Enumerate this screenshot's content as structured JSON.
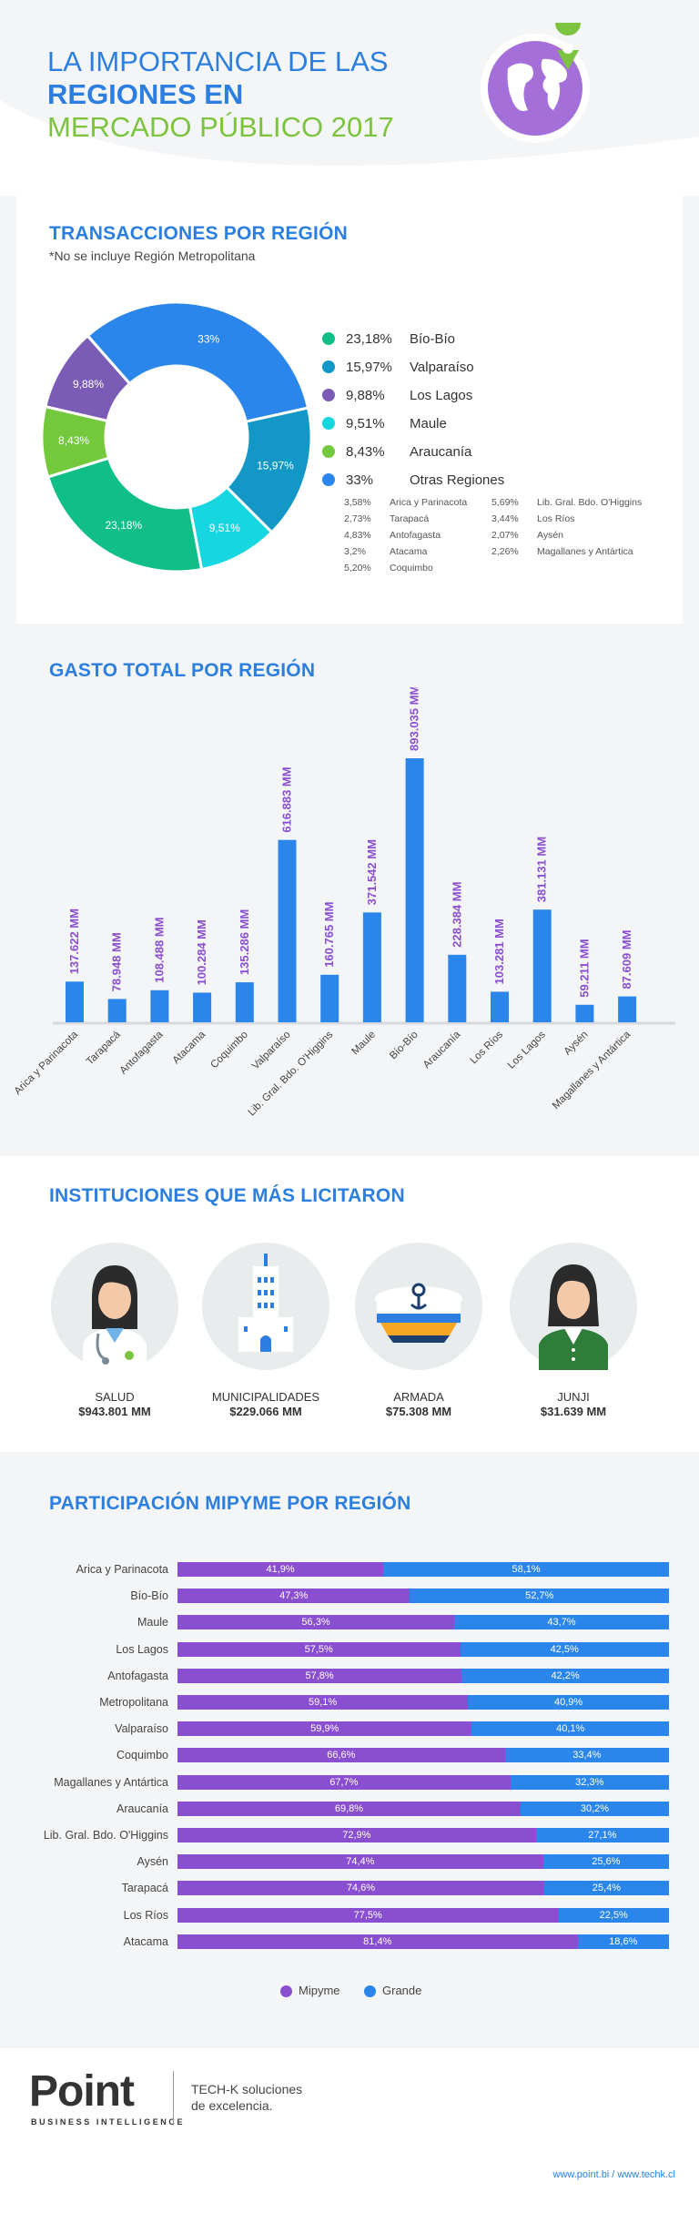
{
  "header": {
    "line1": "LA IMPORTANCIA DE LAS",
    "line2": "REGIONES EN",
    "line3": "MERCADO PÚBLICO 2017"
  },
  "transacciones": {
    "title": "TRANSACCIONES POR REGIÓN",
    "note": "*No se incluye Región Metropolitana"
  },
  "gasto": {
    "title": "GASTO TOTAL POR REGIÓN"
  },
  "instituciones": {
    "title": "INSTITUCIONES QUE MÁS LICITARON",
    "items": [
      {
        "name": "SALUD",
        "value": "$943.801 MM"
      },
      {
        "name": "MUNICIPALIDADES",
        "value": "$229.066 MM"
      },
      {
        "name": "ARMADA",
        "value": "$75.308 MM"
      },
      {
        "name": "JUNJI",
        "value": "$31.639 MM"
      }
    ]
  },
  "mipyme": {
    "title": "PARTICIPACIÓN MIPYME POR REGIÓN"
  },
  "footer": {
    "logo": "Point",
    "logo_sub": "BUSINESS INTELLIGENCE",
    "tagline1": "TECH-K soluciones",
    "tagline2": "de excelencia.",
    "urls": "www.point.bi / www.techk.cl"
  },
  "colors": {
    "blue": "#2c7fe0",
    "green_title": "#7cc43f",
    "biobio": "#0fbf87",
    "valparaiso": "#1297c7",
    "loslagos": "#7a5bb5",
    "maule": "#16d6e0",
    "araucania": "#74c83c",
    "otras": "#2a86ea",
    "mipyme": "#8a4fd0",
    "grande": "#2a86ea"
  },
  "chart_data": [
    {
      "type": "pie",
      "title": "TRANSACCIONES POR REGIÓN",
      "slices": [
        {
          "name": "Bío-Bío",
          "value": 23.18,
          "label": "23,18%",
          "color": "#0fbf87"
        },
        {
          "name": "Valparaíso",
          "value": 15.97,
          "label": "15,97%",
          "color": "#1297c7"
        },
        {
          "name": "Los Lagos",
          "value": 9.88,
          "label": "9,88%",
          "color": "#7a5bb5"
        },
        {
          "name": "Maule",
          "value": 9.51,
          "label": "9,51%",
          "color": "#16d6e0"
        },
        {
          "name": "Araucanía",
          "value": 8.43,
          "label": "8,43%",
          "color": "#74c83c"
        },
        {
          "name": "Otras Regiones",
          "value": 33,
          "label": "33%",
          "color": "#2a86ea"
        }
      ],
      "otras_breakdown": [
        {
          "pct": "3,58%",
          "name": "Arica y Parinacota"
        },
        {
          "pct": "5,69%",
          "name": "Lib. Gral. Bdo. O'Higgins"
        },
        {
          "pct": "2,73%",
          "name": "Tarapacá"
        },
        {
          "pct": "3,44%",
          "name": "Los Ríos"
        },
        {
          "pct": "4,83%",
          "name": "Antofagasta"
        },
        {
          "pct": "2,07%",
          "name": "Aysén"
        },
        {
          "pct": "3,2%",
          "name": "Atacama"
        },
        {
          "pct": "2,26%",
          "name": "Magallanes y Antártica"
        },
        {
          "pct": "5,20%",
          "name": "Coquimbo"
        }
      ]
    },
    {
      "type": "bar",
      "title": "GASTO TOTAL POR REGIÓN",
      "categories": [
        "Arica y Parinacota",
        "Tarapacá",
        "Antofagasta",
        "Atacama",
        "Coquimbo",
        "Valparaíso",
        "Lib. Gral. Bdo. O'Higgins",
        "Maule",
        "Bío-Bío",
        "Araucanía",
        "Los Ríos",
        "Los Lagos",
        "Aysén",
        "Magallanes y Antártica"
      ],
      "values": [
        137622,
        78948,
        108488,
        100284,
        135286,
        616883,
        160765,
        371542,
        893035,
        228384,
        103281,
        381131,
        59211,
        87609
      ],
      "labels": [
        "137.622 MM",
        "78.948 MM",
        "108.488 MM",
        "100.284 MM",
        "135.286 MM",
        "616.883 MM",
        "160.765 MM",
        "371.542 MM",
        "893.035 MM",
        "228.384 MM",
        "103.281 MM",
        "381.131 MM",
        "59.211 MM",
        "87.609 MM"
      ],
      "ylim": [
        0,
        893035
      ]
    },
    {
      "type": "bar",
      "title": "PARTICIPACIÓN MIPYME POR REGIÓN",
      "categories": [
        "Arica y Parinacota",
        "Bío-Bío",
        "Maule",
        "Los Lagos",
        "Antofagasta",
        "Metropolitana",
        "Valparaíso",
        "Coquimbo",
        "Magallanes y Antártica",
        "Araucanía",
        "Lib. Gral. Bdo. O'Higgins",
        "Aysén",
        "Tarapacá",
        "Los Ríos",
        "Atacama"
      ],
      "series": [
        {
          "name": "Mipyme",
          "values": [
            41.9,
            47.3,
            56.3,
            57.5,
            57.8,
            59.1,
            59.9,
            66.6,
            67.7,
            69.8,
            72.9,
            74.4,
            74.6,
            77.5,
            81.4
          ],
          "labels": [
            "41,9%",
            "47,3%",
            "56,3%",
            "57,5%",
            "57,8%",
            "59,1%",
            "59,9%",
            "66,6%",
            "67,7%",
            "69,8%",
            "72,9%",
            "74,4%",
            "74,6%",
            "77,5%",
            "81,4%"
          ]
        },
        {
          "name": "Grande",
          "values": [
            58.1,
            52.7,
            43.7,
            42.5,
            42.2,
            40.9,
            40.1,
            33.4,
            32.3,
            30.2,
            27.1,
            25.6,
            25.4,
            22.5,
            18.6
          ],
          "labels": [
            "58,1%",
            "52,7%",
            "43,7%",
            "42,5%",
            "42,2%",
            "40,9%",
            "40,1%",
            "33,4%",
            "32,3%",
            "30,2%",
            "27,1%",
            "25,6%",
            "25,4%",
            "22,5%",
            "18,6%"
          ]
        }
      ],
      "legend": "bottom"
    }
  ]
}
